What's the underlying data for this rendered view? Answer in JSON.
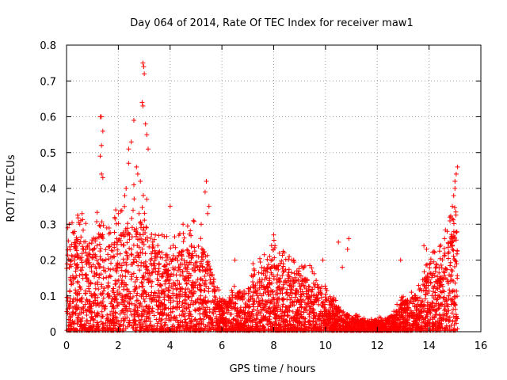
{
  "chart_data": {
    "type": "scatter",
    "title": "Day 064 of 2014, Rate Of TEC Index for receiver maw1",
    "xlabel": "GPS time / hours",
    "ylabel": "ROTI / TECUs",
    "xlim": [
      0,
      16
    ],
    "ylim": [
      0,
      0.8
    ],
    "xticks": [
      "0",
      "2",
      "4",
      "6",
      "8",
      "10",
      "12",
      "14",
      "16"
    ],
    "yticks": [
      "0",
      "0.1",
      "0.2",
      "0.3",
      "0.4",
      "0.5",
      "0.6",
      "0.7",
      "0.8"
    ],
    "grid": true,
    "marker": "+",
    "marker_color": "#ff0000",
    "series": [
      {
        "name": "maw1",
        "x_range": [
          0,
          15.1
        ],
        "profile_note": "dense ROTI cloud; envelope of typical upper values by hour",
        "envelope": [
          [
            0.0,
            0.22
          ],
          [
            0.5,
            0.26
          ],
          [
            1.0,
            0.22
          ],
          [
            1.3,
            0.3
          ],
          [
            1.5,
            0.22
          ],
          [
            2.0,
            0.26
          ],
          [
            2.5,
            0.3
          ],
          [
            3.0,
            0.3
          ],
          [
            3.5,
            0.22
          ],
          [
            4.0,
            0.2
          ],
          [
            4.5,
            0.22
          ],
          [
            5.0,
            0.24
          ],
          [
            5.5,
            0.2
          ],
          [
            5.8,
            0.1
          ],
          [
            6.0,
            0.08
          ],
          [
            6.5,
            0.1
          ],
          [
            7.0,
            0.12
          ],
          [
            7.5,
            0.16
          ],
          [
            8.0,
            0.2
          ],
          [
            8.5,
            0.17
          ],
          [
            9.0,
            0.15
          ],
          [
            9.5,
            0.14
          ],
          [
            10.0,
            0.1
          ],
          [
            10.5,
            0.06
          ],
          [
            11.0,
            0.04
          ],
          [
            11.5,
            0.03
          ],
          [
            12.0,
            0.03
          ],
          [
            12.5,
            0.04
          ],
          [
            13.0,
            0.08
          ],
          [
            13.5,
            0.1
          ],
          [
            14.0,
            0.16
          ],
          [
            14.5,
            0.2
          ],
          [
            15.0,
            0.28
          ],
          [
            15.1,
            0.3
          ]
        ],
        "notable_points": [
          {
            "x": 2.95,
            "y": 0.75
          },
          {
            "x": 2.98,
            "y": 0.74
          },
          {
            "x": 3.0,
            "y": 0.72
          },
          {
            "x": 2.92,
            "y": 0.64
          },
          {
            "x": 2.95,
            "y": 0.63
          },
          {
            "x": 2.6,
            "y": 0.59
          },
          {
            "x": 1.3,
            "y": 0.6
          },
          {
            "x": 1.35,
            "y": 0.6
          },
          {
            "x": 1.4,
            "y": 0.56
          },
          {
            "x": 1.35,
            "y": 0.52
          },
          {
            "x": 1.3,
            "y": 0.49
          },
          {
            "x": 1.35,
            "y": 0.44
          },
          {
            "x": 1.4,
            "y": 0.43
          },
          {
            "x": 3.05,
            "y": 0.58
          },
          {
            "x": 3.1,
            "y": 0.55
          },
          {
            "x": 2.5,
            "y": 0.53
          },
          {
            "x": 2.4,
            "y": 0.51
          },
          {
            "x": 3.15,
            "y": 0.51
          },
          {
            "x": 2.4,
            "y": 0.47
          },
          {
            "x": 2.7,
            "y": 0.46
          },
          {
            "x": 2.75,
            "y": 0.44
          },
          {
            "x": 2.85,
            "y": 0.42
          },
          {
            "x": 2.6,
            "y": 0.41
          },
          {
            "x": 2.3,
            "y": 0.4
          },
          {
            "x": 2.25,
            "y": 0.38
          },
          {
            "x": 3.1,
            "y": 0.37
          },
          {
            "x": 4.0,
            "y": 0.35
          },
          {
            "x": 5.4,
            "y": 0.42
          },
          {
            "x": 5.35,
            "y": 0.39
          },
          {
            "x": 5.5,
            "y": 0.35
          },
          {
            "x": 5.45,
            "y": 0.33
          },
          {
            "x": 2.8,
            "y": 0.33
          },
          {
            "x": 2.9,
            "y": 0.3
          },
          {
            "x": 0.6,
            "y": 0.33
          },
          {
            "x": 0.55,
            "y": 0.31
          },
          {
            "x": 0.05,
            "y": 0.29
          },
          {
            "x": 0.1,
            "y": 0.3
          },
          {
            "x": 1.9,
            "y": 0.34
          },
          {
            "x": 2.0,
            "y": 0.33
          },
          {
            "x": 4.5,
            "y": 0.3
          },
          {
            "x": 4.9,
            "y": 0.31
          },
          {
            "x": 5.2,
            "y": 0.3
          },
          {
            "x": 8.0,
            "y": 0.27
          },
          {
            "x": 8.05,
            "y": 0.24
          },
          {
            "x": 6.5,
            "y": 0.2
          },
          {
            "x": 7.2,
            "y": 0.19
          },
          {
            "x": 8.6,
            "y": 0.21
          },
          {
            "x": 9.9,
            "y": 0.2
          },
          {
            "x": 10.5,
            "y": 0.25
          },
          {
            "x": 10.9,
            "y": 0.26
          },
          {
            "x": 10.85,
            "y": 0.23
          },
          {
            "x": 10.65,
            "y": 0.18
          },
          {
            "x": 12.9,
            "y": 0.2
          },
          {
            "x": 13.8,
            "y": 0.24
          },
          {
            "x": 13.9,
            "y": 0.23
          },
          {
            "x": 14.7,
            "y": 0.28
          },
          {
            "x": 14.8,
            "y": 0.32
          },
          {
            "x": 14.9,
            "y": 0.35
          },
          {
            "x": 14.95,
            "y": 0.38
          },
          {
            "x": 15.0,
            "y": 0.42
          },
          {
            "x": 15.05,
            "y": 0.44
          },
          {
            "x": 15.1,
            "y": 0.46
          },
          {
            "x": 15.0,
            "y": 0.4
          },
          {
            "x": 14.6,
            "y": 0.26
          }
        ]
      }
    ]
  }
}
